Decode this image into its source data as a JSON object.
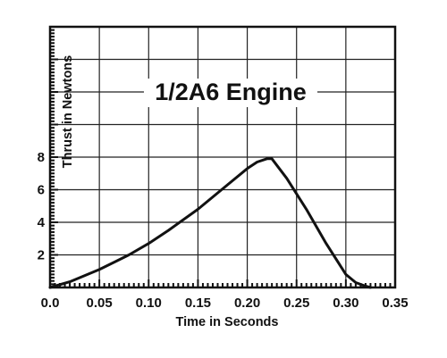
{
  "chart_data": {
    "type": "line",
    "title": "1/2A6 Engine",
    "xlabel": "Time in Seconds",
    "ylabel": "Thrust in Newtons",
    "xlim": [
      0.0,
      0.35
    ],
    "ylim": [
      0,
      16
    ],
    "grid": true,
    "x_ticks": [
      {
        "value": 0.0,
        "label": "0.0"
      },
      {
        "value": 0.05,
        "label": "0.05"
      },
      {
        "value": 0.1,
        "label": "0.10"
      },
      {
        "value": 0.15,
        "label": "0.15"
      },
      {
        "value": 0.2,
        "label": "0.20"
      },
      {
        "value": 0.25,
        "label": "0.25"
      },
      {
        "value": 0.3,
        "label": "0.30"
      },
      {
        "value": 0.35,
        "label": "0.35"
      }
    ],
    "y_ticks": [
      {
        "value": 2,
        "label": "2"
      },
      {
        "value": 4,
        "label": "4"
      },
      {
        "value": 6,
        "label": "6"
      },
      {
        "value": 8,
        "label": "8"
      }
    ],
    "series": [
      {
        "x": [
          0.0,
          0.02,
          0.05,
          0.08,
          0.1,
          0.12,
          0.15,
          0.18,
          0.2,
          0.21,
          0.22,
          0.225,
          0.24,
          0.26,
          0.28,
          0.3,
          0.31,
          0.32,
          0.325
        ],
        "y": [
          0.0,
          0.35,
          1.1,
          2.0,
          2.7,
          3.5,
          4.8,
          6.3,
          7.3,
          7.7,
          7.9,
          7.9,
          6.7,
          4.8,
          2.7,
          0.8,
          0.3,
          0.08,
          0.0
        ],
        "color": "#111111"
      }
    ]
  }
}
